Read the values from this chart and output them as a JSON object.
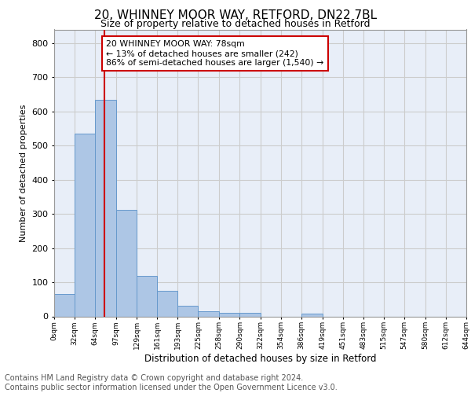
{
  "title1": "20, WHINNEY MOOR WAY, RETFORD, DN22 7BL",
  "title2": "Size of property relative to detached houses in Retford",
  "xlabel": "Distribution of detached houses by size in Retford",
  "ylabel": "Number of detached properties",
  "bar_left_edges": [
    0,
    32,
    64,
    97,
    129,
    161,
    193,
    225,
    258,
    290,
    322,
    354,
    386,
    419,
    451,
    483,
    515,
    547,
    580,
    612
  ],
  "bar_heights": [
    65,
    535,
    635,
    312,
    118,
    75,
    30,
    15,
    10,
    10,
    0,
    0,
    7,
    0,
    0,
    0,
    0,
    0,
    0,
    0
  ],
  "bar_widths": [
    32,
    33,
    33,
    32,
    32,
    32,
    32,
    33,
    32,
    32,
    32,
    32,
    33,
    32,
    32,
    32,
    32,
    33,
    32,
    32
  ],
  "bar_color": "#adc6e5",
  "bar_edge_color": "#6699cc",
  "property_line_x": 78,
  "property_line_color": "#cc0000",
  "annotation_text": "20 WHINNEY MOOR WAY: 78sqm\n← 13% of detached houses are smaller (242)\n86% of semi-detached houses are larger (1,540) →",
  "annotation_box_color": "#cc0000",
  "annotation_box_fill": "#ffffff",
  "ylim": [
    0,
    840
  ],
  "yticks": [
    0,
    100,
    200,
    300,
    400,
    500,
    600,
    700,
    800
  ],
  "x_tick_labels": [
    "0sqm",
    "32sqm",
    "64sqm",
    "97sqm",
    "129sqm",
    "161sqm",
    "193sqm",
    "225sqm",
    "258sqm",
    "290sqm",
    "322sqm",
    "354sqm",
    "386sqm",
    "419sqm",
    "451sqm",
    "483sqm",
    "515sqm",
    "547sqm",
    "580sqm",
    "612sqm",
    "644sqm"
  ],
  "x_tick_positions": [
    0,
    32,
    64,
    97,
    129,
    161,
    193,
    225,
    258,
    290,
    322,
    354,
    386,
    419,
    451,
    483,
    515,
    547,
    580,
    612,
    644
  ],
  "grid_color": "#cccccc",
  "bg_color": "#e8eef8",
  "footer_text": "Contains HM Land Registry data © Crown copyright and database right 2024.\nContains public sector information licensed under the Open Government Licence v3.0.",
  "footer_fontsize": 7.0,
  "title1_fontsize": 11,
  "title2_fontsize": 9,
  "ylabel_fontsize": 8,
  "xlabel_fontsize": 8.5
}
